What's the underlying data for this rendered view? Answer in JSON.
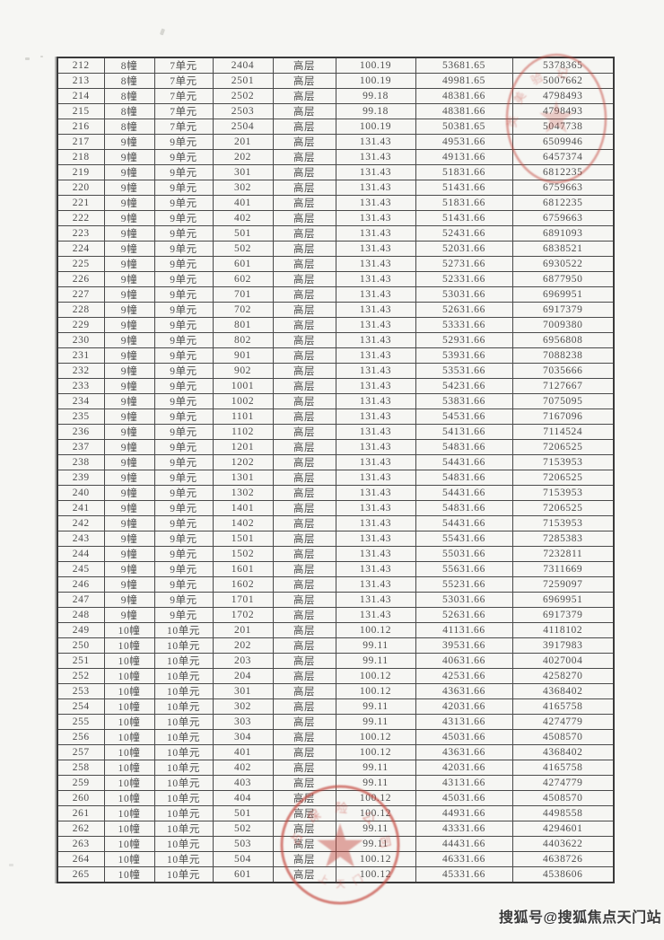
{
  "watermark": {
    "text": "搜狐号@搜狐焦点天门站"
  },
  "table": {
    "rows": [
      [
        "212",
        "8幢",
        "7单元",
        "2404",
        "高层",
        "100.19",
        "53681.65",
        "5378365"
      ],
      [
        "213",
        "8幢",
        "7单元",
        "2501",
        "高层",
        "100.19",
        "49981.65",
        "5007662"
      ],
      [
        "214",
        "8幢",
        "7单元",
        "2502",
        "高层",
        "99.18",
        "48381.66",
        "4798493"
      ],
      [
        "215",
        "8幢",
        "7单元",
        "2503",
        "高层",
        "99.18",
        "48381.66",
        "4798493"
      ],
      [
        "216",
        "8幢",
        "7单元",
        "2504",
        "高层",
        "100.19",
        "50381.65",
        "5047738"
      ],
      [
        "217",
        "9幢",
        "9单元",
        "201",
        "高层",
        "131.43",
        "49531.66",
        "6509946"
      ],
      [
        "218",
        "9幢",
        "9单元",
        "202",
        "高层",
        "131.43",
        "49131.66",
        "6457374"
      ],
      [
        "219",
        "9幢",
        "9单元",
        "301",
        "高层",
        "131.43",
        "51831.66",
        "6812235"
      ],
      [
        "220",
        "9幢",
        "9单元",
        "302",
        "高层",
        "131.43",
        "51431.66",
        "6759663"
      ],
      [
        "221",
        "9幢",
        "9单元",
        "401",
        "高层",
        "131.43",
        "51831.66",
        "6812235"
      ],
      [
        "222",
        "9幢",
        "9单元",
        "402",
        "高层",
        "131.43",
        "51431.66",
        "6759663"
      ],
      [
        "223",
        "9幢",
        "9单元",
        "501",
        "高层",
        "131.43",
        "52431.66",
        "6891093"
      ],
      [
        "224",
        "9幢",
        "9单元",
        "502",
        "高层",
        "131.43",
        "52031.66",
        "6838521"
      ],
      [
        "225",
        "9幢",
        "9单元",
        "601",
        "高层",
        "131.43",
        "52731.66",
        "6930522"
      ],
      [
        "226",
        "9幢",
        "9单元",
        "602",
        "高层",
        "131.43",
        "52331.66",
        "6877950"
      ],
      [
        "227",
        "9幢",
        "9单元",
        "701",
        "高层",
        "131.43",
        "53031.66",
        "6969951"
      ],
      [
        "228",
        "9幢",
        "9单元",
        "702",
        "高层",
        "131.43",
        "52631.66",
        "6917379"
      ],
      [
        "229",
        "9幢",
        "9单元",
        "801",
        "高层",
        "131.43",
        "53331.66",
        "7009380"
      ],
      [
        "230",
        "9幢",
        "9单元",
        "802",
        "高层",
        "131.43",
        "52931.66",
        "6956808"
      ],
      [
        "231",
        "9幢",
        "9单元",
        "901",
        "高层",
        "131.43",
        "53931.66",
        "7088238"
      ],
      [
        "232",
        "9幢",
        "9单元",
        "902",
        "高层",
        "131.43",
        "53531.66",
        "7035666"
      ],
      [
        "233",
        "9幢",
        "9单元",
        "1001",
        "高层",
        "131.43",
        "54231.66",
        "7127667"
      ],
      [
        "234",
        "9幢",
        "9单元",
        "1002",
        "高层",
        "131.43",
        "53831.66",
        "7075095"
      ],
      [
        "235",
        "9幢",
        "9单元",
        "1101",
        "高层",
        "131.43",
        "54531.66",
        "7167096"
      ],
      [
        "236",
        "9幢",
        "9单元",
        "1102",
        "高层",
        "131.43",
        "54131.66",
        "7114524"
      ],
      [
        "237",
        "9幢",
        "9单元",
        "1201",
        "高层",
        "131.43",
        "54831.66",
        "7206525"
      ],
      [
        "238",
        "9幢",
        "9单元",
        "1202",
        "高层",
        "131.43",
        "54431.66",
        "7153953"
      ],
      [
        "239",
        "9幢",
        "9单元",
        "1301",
        "高层",
        "131.43",
        "54831.66",
        "7206525"
      ],
      [
        "240",
        "9幢",
        "9单元",
        "1302",
        "高层",
        "131.43",
        "54431.66",
        "7153953"
      ],
      [
        "241",
        "9幢",
        "9单元",
        "1401",
        "高层",
        "131.43",
        "54831.66",
        "7206525"
      ],
      [
        "242",
        "9幢",
        "9单元",
        "1402",
        "高层",
        "131.43",
        "54431.66",
        "7153953"
      ],
      [
        "243",
        "9幢",
        "9单元",
        "1501",
        "高层",
        "131.43",
        "55431.66",
        "7285383"
      ],
      [
        "244",
        "9幢",
        "9单元",
        "1502",
        "高层",
        "131.43",
        "55031.66",
        "7232811"
      ],
      [
        "245",
        "9幢",
        "9单元",
        "1601",
        "高层",
        "131.43",
        "55631.66",
        "7311669"
      ],
      [
        "246",
        "9幢",
        "9单元",
        "1602",
        "高层",
        "131.43",
        "55231.66",
        "7259097"
      ],
      [
        "247",
        "9幢",
        "9单元",
        "1701",
        "高层",
        "131.43",
        "53031.66",
        "6969951"
      ],
      [
        "248",
        "9幢",
        "9单元",
        "1702",
        "高层",
        "131.43",
        "52631.66",
        "6917379"
      ],
      [
        "249",
        "10幢",
        "10单元",
        "201",
        "高层",
        "100.12",
        "41131.66",
        "4118102"
      ],
      [
        "250",
        "10幢",
        "10单元",
        "202",
        "高层",
        "99.11",
        "39531.66",
        "3917983"
      ],
      [
        "251",
        "10幢",
        "10单元",
        "203",
        "高层",
        "99.11",
        "40631.66",
        "4027004"
      ],
      [
        "252",
        "10幢",
        "10单元",
        "204",
        "高层",
        "100.12",
        "42531.66",
        "4258270"
      ],
      [
        "253",
        "10幢",
        "10单元",
        "301",
        "高层",
        "100.12",
        "43631.66",
        "4368402"
      ],
      [
        "254",
        "10幢",
        "10单元",
        "302",
        "高层",
        "99.11",
        "42031.66",
        "4165758"
      ],
      [
        "255",
        "10幢",
        "10单元",
        "303",
        "高层",
        "99.11",
        "43131.66",
        "4274779"
      ],
      [
        "256",
        "10幢",
        "10单元",
        "304",
        "高层",
        "100.12",
        "45031.66",
        "4508570"
      ],
      [
        "257",
        "10幢",
        "10单元",
        "401",
        "高层",
        "100.12",
        "43631.66",
        "4368402"
      ],
      [
        "258",
        "10幢",
        "10单元",
        "402",
        "高层",
        "99.11",
        "42031.66",
        "4165758"
      ],
      [
        "259",
        "10幢",
        "10单元",
        "403",
        "高层",
        "99.11",
        "43131.66",
        "4274779"
      ],
      [
        "260",
        "10幢",
        "10单元",
        "404",
        "高层",
        "100.12",
        "45031.66",
        "4508570"
      ],
      [
        "261",
        "10幢",
        "10单元",
        "501",
        "高层",
        "100.12",
        "44931.66",
        "4498558"
      ],
      [
        "262",
        "10幢",
        "10单元",
        "502",
        "高层",
        "99.11",
        "43331.66",
        "4294601"
      ],
      [
        "263",
        "10幢",
        "10单元",
        "503",
        "高层",
        "99.11",
        "44431.66",
        "4403622"
      ],
      [
        "264",
        "10幢",
        "10单元",
        "504",
        "高层",
        "100.12",
        "46331.66",
        "4638726"
      ],
      [
        "265",
        "10幢",
        "10单元",
        "601",
        "高层",
        "100.12",
        "45331.66",
        "4538606"
      ]
    ]
  },
  "stamps": {
    "top": {
      "color": "#c4493f",
      "arc_glyphs": "类 美 验 记",
      "legible": "false"
    },
    "bottom": {
      "color": "#c5463e",
      "arc_glyphs": "占 保 险 公 司",
      "lower_glyphs": "上 天 门",
      "legible": "false"
    }
  }
}
